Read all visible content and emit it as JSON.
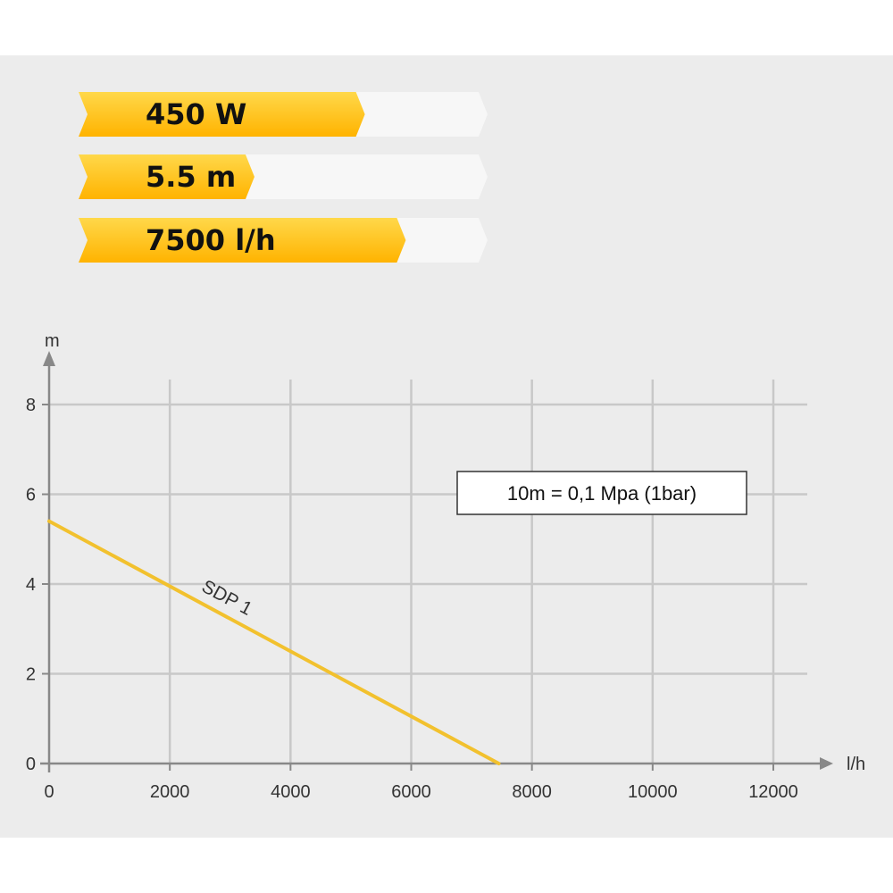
{
  "specs": [
    {
      "label": "450 W",
      "level": 0.7
    },
    {
      "label": "5.5 m",
      "level": 0.43
    },
    {
      "label": "7500 l/h",
      "level": 0.8
    }
  ],
  "colors": {
    "spec_fill": "#ffc000",
    "spec_fill_light": "#ffd84a",
    "spec_empty": "#f7f7f7",
    "line": "#f2c12e",
    "grid": "#c8c8c8",
    "axis": "#888888"
  },
  "chart_data": {
    "type": "line",
    "title": "",
    "xlabel": "l/h",
    "ylabel": "m",
    "xlim": [
      0,
      12000
    ],
    "ylim": [
      0,
      8
    ],
    "xticks": [
      0,
      2000,
      4000,
      6000,
      8000,
      10000,
      12000
    ],
    "yticks": [
      0,
      2,
      4,
      6,
      8
    ],
    "grid": true,
    "series": [
      {
        "name": "SDP 1",
        "x": [
          0,
          7450
        ],
        "y": [
          5.4,
          0
        ]
      }
    ],
    "annotations": [
      "10m = 0,1 Mpa (1bar)"
    ]
  }
}
